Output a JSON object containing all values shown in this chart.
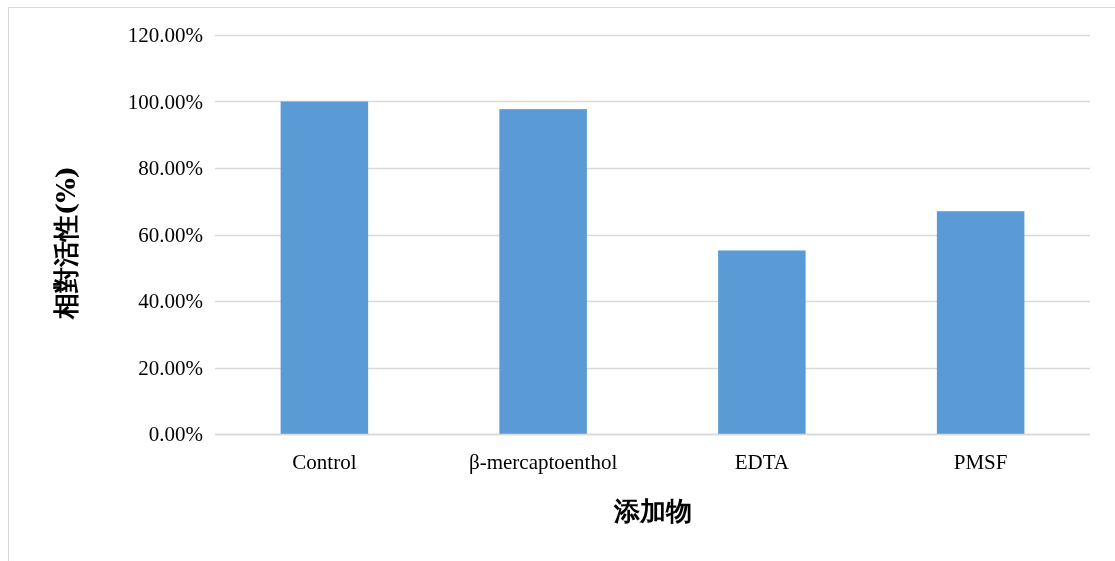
{
  "chart_data": {
    "type": "bar",
    "xlabel": "添加物",
    "ylabel": "相對活性(%)",
    "categories": [
      "Control",
      "β-mercaptoenthol",
      "EDTA",
      "PMSF"
    ],
    "values": [
      100,
      97.7,
      55.2,
      67.0
    ],
    "color": "#5b9bd5",
    "ylim": [
      0,
      120
    ],
    "yticks": [
      {
        "value": 0,
        "label": "0.00%"
      },
      {
        "value": 20,
        "label": "20.00%"
      },
      {
        "value": 40,
        "label": "40.00%"
      },
      {
        "value": 60,
        "label": "60.00%"
      },
      {
        "value": 80,
        "label": "80.00%"
      },
      {
        "value": 100,
        "label": "100.00%"
      },
      {
        "value": 120,
        "label": "120.00%"
      }
    ],
    "grid": "y"
  }
}
